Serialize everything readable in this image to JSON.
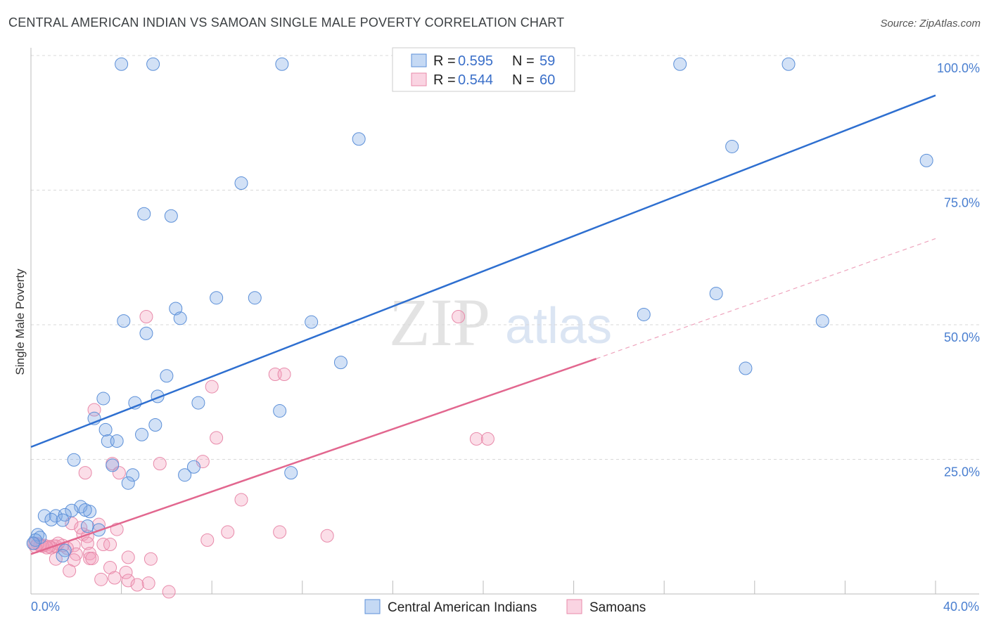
{
  "title": "CENTRAL AMERICAN INDIAN VS SAMOAN SINGLE MALE POVERTY CORRELATION CHART",
  "source": "Source: ZipAtlas.com",
  "watermark": {
    "zip": "ZIP",
    "atlas": "atlas"
  },
  "colors": {
    "blue": "#2e6fd0",
    "pink": "#e2678f",
    "tick": "#4a7fd0"
  },
  "chart_data": {
    "type": "scatter",
    "title": "CENTRAL AMERICAN INDIAN VS SAMOAN SINGLE MALE POVERTY CORRELATION CHART",
    "xlabel": "",
    "ylabel": "Single Male Poverty",
    "xlim": [
      0,
      40
    ],
    "ylim": [
      0,
      100
    ],
    "x_tick_labels": [
      "0.0%",
      "40.0%"
    ],
    "y_ticks": [
      25,
      50,
      75,
      100
    ],
    "y_tick_labels": [
      "25.0%",
      "50.0%",
      "75.0%",
      "100.0%"
    ],
    "legend": [
      {
        "r_label": "R =",
        "r_value": "0.595",
        "n_label": "N =",
        "n_value": "59"
      },
      {
        "r_label": "R =",
        "r_value": "0.544",
        "n_label": "N =",
        "n_value": "60"
      }
    ],
    "series": [
      {
        "name": "Central American Indians",
        "color": "#2e6fd0",
        "r": 0.595,
        "n": 59,
        "trend": {
          "x": [
            0,
            40
          ],
          "y": [
            27.3,
            92.6
          ]
        },
        "points": [
          [
            4.0,
            98.4
          ],
          [
            5.4,
            98.4
          ],
          [
            11.1,
            98.4
          ],
          [
            28.7,
            98.4
          ],
          [
            33.5,
            98.4
          ],
          [
            14.5,
            84.5
          ],
          [
            31.0,
            83.1
          ],
          [
            39.6,
            80.5
          ],
          [
            9.3,
            76.3
          ],
          [
            5.0,
            70.6
          ],
          [
            6.2,
            70.2
          ],
          [
            8.2,
            55.0
          ],
          [
            9.9,
            55.0
          ],
          [
            6.4,
            53.0
          ],
          [
            6.6,
            51.2
          ],
          [
            30.3,
            55.8
          ],
          [
            27.1,
            51.9
          ],
          [
            4.1,
            50.7
          ],
          [
            12.4,
            50.5
          ],
          [
            35.0,
            50.7
          ],
          [
            5.1,
            48.4
          ],
          [
            13.7,
            43.0
          ],
          [
            31.6,
            41.9
          ],
          [
            6.0,
            40.5
          ],
          [
            5.6,
            36.7
          ],
          [
            7.4,
            35.5
          ],
          [
            3.2,
            36.3
          ],
          [
            4.6,
            35.5
          ],
          [
            11.0,
            34.0
          ],
          [
            2.8,
            32.6
          ],
          [
            5.5,
            31.4
          ],
          [
            3.3,
            30.5
          ],
          [
            4.9,
            29.6
          ],
          [
            3.4,
            28.4
          ],
          [
            3.8,
            28.4
          ],
          [
            1.9,
            24.9
          ],
          [
            3.6,
            23.9
          ],
          [
            7.2,
            23.6
          ],
          [
            4.5,
            22.1
          ],
          [
            6.8,
            22.1
          ],
          [
            11.5,
            22.5
          ],
          [
            4.3,
            20.6
          ],
          [
            2.2,
            16.2
          ],
          [
            1.8,
            15.5
          ],
          [
            2.6,
            15.3
          ],
          [
            0.6,
            14.5
          ],
          [
            1.1,
            14.5
          ],
          [
            1.5,
            14.7
          ],
          [
            0.9,
            13.8
          ],
          [
            1.4,
            13.7
          ],
          [
            2.4,
            15.6
          ],
          [
            2.5,
            12.6
          ],
          [
            3.0,
            11.9
          ],
          [
            0.3,
            11.0
          ],
          [
            0.4,
            10.5
          ],
          [
            0.2,
            10.0
          ],
          [
            0.1,
            9.4
          ],
          [
            1.5,
            8.1
          ],
          [
            1.4,
            7.1
          ]
        ]
      },
      {
        "name": "Samoans",
        "color": "#e2678f",
        "r": 0.544,
        "n": 60,
        "trend": {
          "x": [
            0,
            25
          ],
          "y": [
            7.4,
            43.7
          ]
        },
        "trend_dashed": {
          "x": [
            25,
            40
          ],
          "y": [
            43.7,
            66.0
          ]
        },
        "points": [
          [
            18.9,
            51.5
          ],
          [
            5.1,
            51.5
          ],
          [
            8.0,
            38.5
          ],
          [
            10.8,
            40.8
          ],
          [
            11.2,
            40.8
          ],
          [
            2.8,
            34.2
          ],
          [
            8.2,
            29.0
          ],
          [
            19.7,
            28.8
          ],
          [
            20.2,
            28.8
          ],
          [
            3.6,
            24.2
          ],
          [
            5.7,
            24.2
          ],
          [
            7.6,
            24.6
          ],
          [
            3.9,
            22.5
          ],
          [
            2.4,
            22.5
          ],
          [
            9.3,
            17.5
          ],
          [
            3.0,
            12.9
          ],
          [
            3.8,
            12.0
          ],
          [
            8.7,
            11.5
          ],
          [
            11.0,
            11.5
          ],
          [
            1.8,
            13.1
          ],
          [
            2.3,
            11.1
          ],
          [
            2.5,
            10.7
          ],
          [
            2.2,
            12.3
          ],
          [
            13.1,
            10.8
          ],
          [
            7.8,
            10.0
          ],
          [
            1.9,
            9.0
          ],
          [
            2.5,
            9.4
          ],
          [
            3.2,
            9.2
          ],
          [
            3.5,
            9.2
          ],
          [
            1.6,
            8.5
          ],
          [
            1.0,
            8.9
          ],
          [
            1.1,
            8.9
          ],
          [
            1.4,
            9.0
          ],
          [
            1.2,
            9.4
          ],
          [
            0.6,
            9.0
          ],
          [
            0.9,
            8.6
          ],
          [
            0.8,
            8.8
          ],
          [
            0.7,
            8.6
          ],
          [
            0.5,
            8.9
          ],
          [
            0.4,
            9.0
          ],
          [
            0.3,
            9.3
          ],
          [
            0.2,
            8.8
          ],
          [
            0.15,
            9.4
          ],
          [
            2.0,
            7.4
          ],
          [
            2.6,
            7.5
          ],
          [
            1.9,
            6.3
          ],
          [
            1.1,
            6.5
          ],
          [
            2.6,
            6.6
          ],
          [
            2.7,
            6.6
          ],
          [
            4.3,
            6.8
          ],
          [
            5.3,
            6.5
          ],
          [
            1.7,
            4.3
          ],
          [
            3.5,
            4.9
          ],
          [
            4.2,
            4.0
          ],
          [
            3.7,
            3.0
          ],
          [
            3.1,
            2.7
          ],
          [
            4.3,
            2.5
          ],
          [
            5.2,
            2.0
          ],
          [
            4.7,
            1.7
          ],
          [
            6.1,
            0.4
          ]
        ]
      }
    ],
    "bottom_legend": [
      "Central American Indians",
      "Samoans"
    ]
  }
}
